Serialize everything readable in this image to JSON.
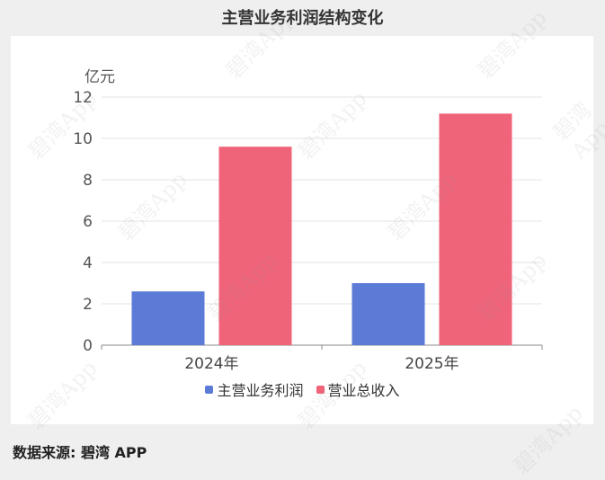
{
  "title": "主营业务利润结构变化",
  "source": "数据来源: 碧湾 APP",
  "watermark": "碧湾App",
  "chart_data": {
    "type": "bar",
    "title": "主营业务利润结构变化",
    "ylabel": "亿元",
    "xlabel": "",
    "categories": [
      "2024年",
      "2025年"
    ],
    "series": [
      {
        "name": "主营业务利润",
        "values": [
          2.6,
          3.0
        ],
        "color": "#5b7bd6"
      },
      {
        "name": "营业总收入",
        "values": [
          9.6,
          11.2
        ],
        "color": "#f0647a"
      }
    ],
    "ylim": [
      0,
      12
    ],
    "yticks": [
      0,
      2,
      4,
      6,
      8,
      10,
      12
    ],
    "grid": true,
    "legend": "bottom"
  }
}
